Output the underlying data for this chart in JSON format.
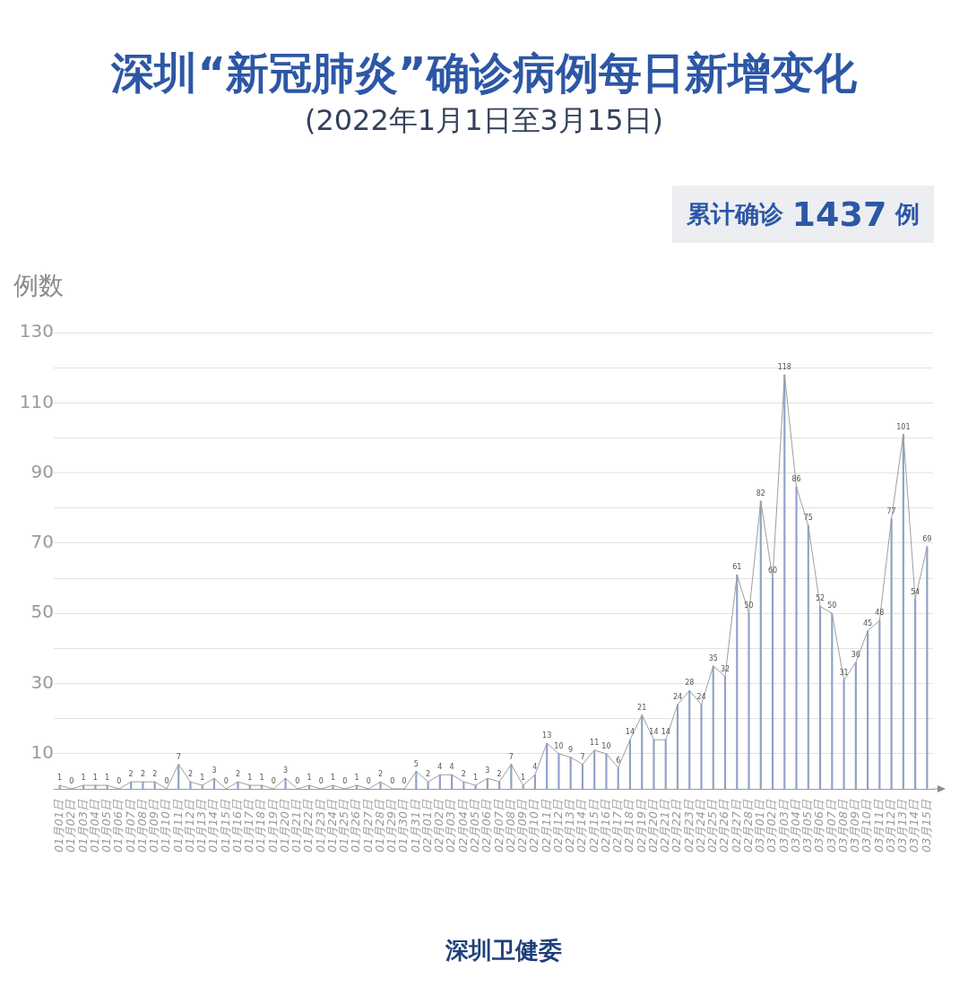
{
  "chart_data": {
    "type": "line",
    "title": "深圳“新冠肺炎”确诊病例每日新增变化",
    "subtitle": "(2022年1月1日至3月15日)",
    "ylabel": "例数",
    "annotations": [
      "累计确诊 1437 例",
      "深圳卫健委"
    ],
    "categories": [
      "01月01日",
      "01月02日",
      "01月03日",
      "01月04日",
      "01月05日",
      "01月06日",
      "01月07日",
      "01月08日",
      "01月09日",
      "01月10日",
      "01月11日",
      "01月12日",
      "01月13日",
      "01月14日",
      "01月15日",
      "01月16日",
      "01月17日",
      "01月18日",
      "01月19日",
      "01月20日",
      "01月21日",
      "01月22日",
      "01月23日",
      "01月24日",
      "01月25日",
      "01月26日",
      "01月27日",
      "01月28日",
      "01月29日",
      "01月30日",
      "01月31日",
      "02月01日",
      "02月02日",
      "02月03日",
      "02月04日",
      "02月05日",
      "02月06日",
      "02月07日",
      "02月08日",
      "02月09日",
      "02月10日",
      "02月11日",
      "02月12日",
      "02月13日",
      "02月14日",
      "02月15日",
      "02月16日",
      "02月17日",
      "02月18日",
      "02月19日",
      "02月20日",
      "02月21日",
      "02月22日",
      "02月23日",
      "02月24日",
      "02月25日",
      "02月26日",
      "02月27日",
      "02月28日",
      "03月01日",
      "03月02日",
      "03月03日",
      "03月04日",
      "03月05日",
      "03月06日",
      "03月07日",
      "03月08日",
      "03月09日",
      "03月10日",
      "03月11日",
      "03月12日",
      "03月13日",
      "03月14日",
      "03月15日"
    ],
    "series": [
      {
        "type": "bar",
        "color": "#8fa1c7",
        "values": [
          1,
          0,
          1,
          1,
          1,
          0,
          2,
          2,
          2,
          0,
          7,
          2,
          1,
          3,
          0,
          2,
          1,
          1,
          0,
          3,
          0,
          1,
          0,
          1,
          0,
          1,
          0,
          2,
          0,
          0,
          5,
          2,
          4,
          4,
          2,
          1,
          3,
          2,
          7,
          1,
          4,
          13,
          10,
          9,
          7,
          11,
          10,
          6,
          14,
          21,
          14,
          14,
          24,
          28,
          24,
          35,
          32,
          61,
          50,
          82,
          60,
          118,
          86,
          75,
          52,
          50,
          31,
          36,
          45,
          48,
          77,
          101,
          54,
          69
        ]
      },
      {
        "color": "#9e9e9e",
        "values": [
          1,
          0,
          1,
          1,
          1,
          0,
          2,
          2,
          2,
          0,
          7,
          2,
          1,
          3,
          0,
          2,
          1,
          1,
          0,
          3,
          0,
          1,
          0,
          1,
          0,
          1,
          0,
          2,
          0,
          0,
          5,
          2,
          4,
          4,
          2,
          1,
          3,
          2,
          7,
          1,
          4,
          13,
          10,
          9,
          7,
          11,
          10,
          6,
          14,
          21,
          14,
          14,
          24,
          28,
          24,
          35,
          32,
          61,
          50,
          82,
          60,
          118,
          86,
          75,
          52,
          50,
          31,
          36,
          45,
          48,
          77,
          101,
          54,
          69
        ],
        "value_labels": [
          "1",
          "0",
          "1",
          "1",
          "1",
          "0",
          "2",
          "2",
          "2",
          "0",
          "7",
          "2",
          "1",
          "3",
          "0",
          "2",
          "1",
          "1",
          "0",
          "3",
          "0",
          "1",
          "0",
          "1",
          "0",
          "1",
          "0",
          "2",
          "0",
          "0",
          "5",
          "2",
          "4",
          "4",
          "2",
          "1",
          "3",
          "2",
          "7",
          "1",
          "4",
          "13",
          "10",
          "9",
          "7",
          "11",
          "10",
          "6",
          "14",
          "21",
          "14",
          "14",
          "24",
          "28",
          "24",
          "35",
          "32",
          "61",
          "50",
          "82",
          "60",
          "118",
          "86",
          "75",
          "52",
          "50",
          "31",
          "36",
          "45",
          "48",
          "77",
          "101",
          "54",
          "69"
        ]
      }
    ],
    "ylim": [
      0,
      130
    ],
    "yticks": [
      {
        "value": 10,
        "label": "10"
      },
      {
        "value": 20,
        "label": null
      },
      {
        "value": 30,
        "label": "30"
      },
      {
        "value": 40,
        "label": null
      },
      {
        "value": 50,
        "label": "50"
      },
      {
        "value": 60,
        "label": null
      },
      {
        "value": 70,
        "label": "70"
      },
      {
        "value": 80,
        "label": null
      },
      {
        "value": 90,
        "label": "90"
      },
      {
        "value": 100,
        "label": null
      },
      {
        "value": 110,
        "label": "110"
      },
      {
        "value": 120,
        "label": null
      },
      {
        "value": 130,
        "label": "130"
      }
    ],
    "grid": "y"
  }
}
